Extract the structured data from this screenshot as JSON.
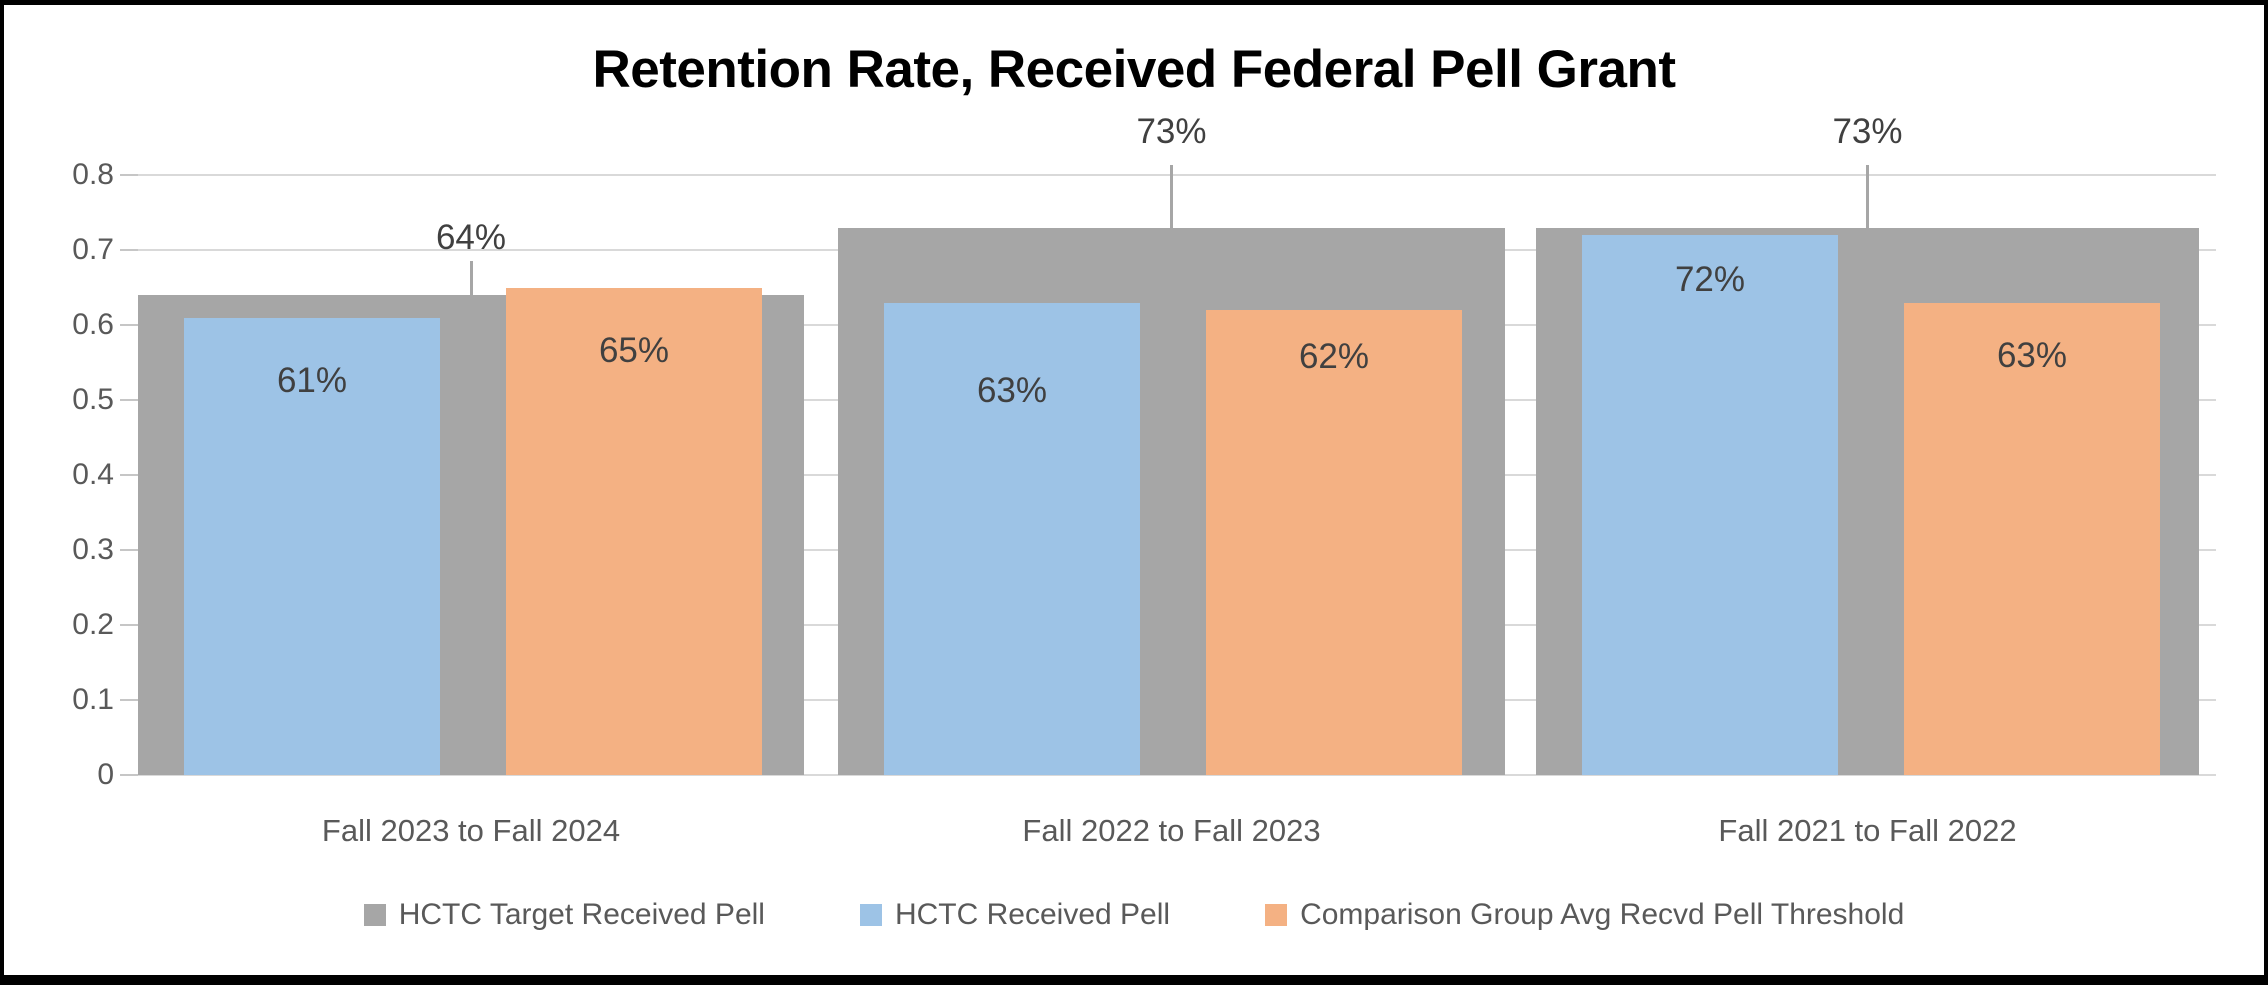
{
  "chart_data": {
    "type": "bar",
    "title": "Retention Rate, Received Federal Pell Grant",
    "categories": [
      "Fall 2023 to Fall 2024",
      "Fall 2022 to Fall 2023",
      "Fall 2021 to Fall 2022"
    ],
    "series": [
      {
        "name": "HCTC Target Received Pell",
        "color": "#A6A6A6",
        "values": [
          0.64,
          0.73,
          0.73
        ],
        "data_labels": [
          "64%",
          "73%",
          "73%"
        ],
        "label_position": "above-with-leader-line"
      },
      {
        "name": "HCTC Received Pell",
        "color": "#9DC3E6",
        "values": [
          0.61,
          0.63,
          0.72
        ],
        "data_labels": [
          "61%",
          "63%",
          "72%"
        ],
        "label_position": "inside-top"
      },
      {
        "name": "Comparison Group Avg Recvd Pell Threshold",
        "color": "#F4B183",
        "values": [
          0.65,
          0.62,
          0.63
        ],
        "data_labels": [
          "65%",
          "62%",
          "63%"
        ],
        "label_position": "inside-top"
      }
    ],
    "y_axis": {
      "min": 0,
      "max": 0.8,
      "tick_interval": 0.1,
      "tick_labels": [
        "0.8",
        "0.7",
        "0.6",
        "0.5",
        "0.4",
        "0.3",
        "0.2",
        "0.1",
        "0"
      ],
      "gridlines": true
    },
    "legend_position": "bottom",
    "colors": {
      "gridline": "#D9D9D9",
      "axis_text": "#595959",
      "data_label_text": "#404040",
      "title_text": "#000000",
      "leader_line": "#A6A6A6",
      "frame_border": "#000000",
      "background": "#FFFFFF"
    }
  }
}
